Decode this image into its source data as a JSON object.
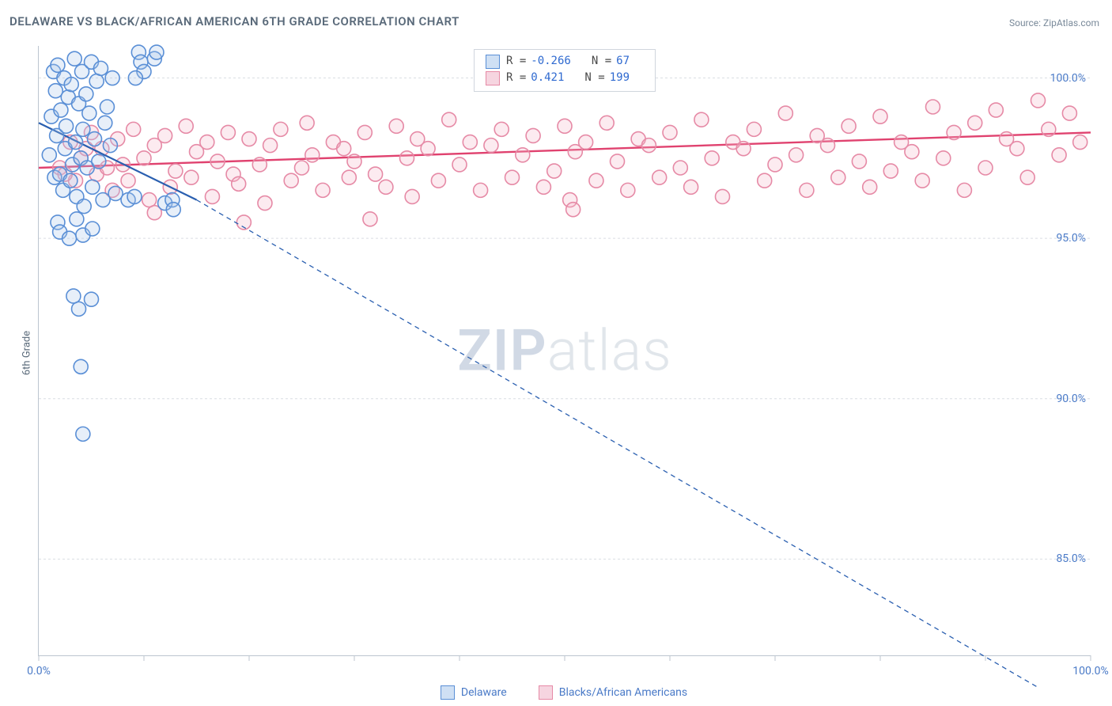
{
  "title": "DELAWARE VS BLACK/AFRICAN AMERICAN 6TH GRADE CORRELATION CHART",
  "source": "Source: ZipAtlas.com",
  "ylabel": "6th Grade",
  "watermark_left": "ZIP",
  "watermark_right": "atlas",
  "chart": {
    "type": "scatter",
    "xlim": [
      0,
      100
    ],
    "ylim": [
      82,
      101
    ],
    "y_ticks": [
      85.0,
      90.0,
      95.0,
      100.0
    ],
    "y_tick_labels": [
      "85.0%",
      "90.0%",
      "95.0%",
      "100.0%"
    ],
    "x_first_label": "0.0%",
    "x_last_label": "100.0%",
    "x_ticks": [
      0,
      10,
      20,
      30,
      40,
      50,
      60,
      70,
      80,
      90,
      100
    ],
    "grid_color": "#dadee3",
    "grid_dash": "3,3",
    "axis_color": "#bcc5cf",
    "background_color": "#ffffff",
    "marker_radius": 9,
    "marker_stroke_width": 1.6,
    "marker_fill_opacity": 0.28,
    "series": [
      {
        "name": "Delaware",
        "color_stroke": "#5a8fd6",
        "color_fill": "#a8c7ea",
        "data": [
          [
            1.0,
            97.6
          ],
          [
            1.2,
            98.8
          ],
          [
            1.4,
            100.2
          ],
          [
            1.5,
            96.9
          ],
          [
            1.6,
            99.6
          ],
          [
            1.7,
            98.2
          ],
          [
            1.8,
            100.4
          ],
          [
            2.0,
            97.0
          ],
          [
            2.1,
            99.0
          ],
          [
            2.3,
            96.5
          ],
          [
            2.4,
            100.0
          ],
          [
            2.5,
            97.8
          ],
          [
            2.6,
            98.5
          ],
          [
            2.8,
            99.4
          ],
          [
            3.0,
            96.8
          ],
          [
            3.1,
            99.8
          ],
          [
            3.2,
            97.3
          ],
          [
            3.4,
            100.6
          ],
          [
            3.5,
            98.0
          ],
          [
            3.6,
            96.3
          ],
          [
            3.8,
            99.2
          ],
          [
            4.0,
            97.5
          ],
          [
            4.1,
            100.2
          ],
          [
            4.2,
            98.4
          ],
          [
            4.3,
            96.0
          ],
          [
            4.5,
            99.5
          ],
          [
            4.6,
            97.2
          ],
          [
            4.8,
            98.9
          ],
          [
            5.0,
            100.5
          ],
          [
            5.1,
            96.6
          ],
          [
            5.3,
            98.1
          ],
          [
            5.5,
            99.9
          ],
          [
            5.7,
            97.4
          ],
          [
            5.9,
            100.3
          ],
          [
            6.1,
            96.2
          ],
          [
            6.3,
            98.6
          ],
          [
            6.5,
            99.1
          ],
          [
            6.8,
            97.9
          ],
          [
            7.0,
            100.0
          ],
          [
            7.3,
            96.4
          ],
          [
            1.8,
            95.5
          ],
          [
            2.0,
            95.2
          ],
          [
            2.9,
            95.0
          ],
          [
            3.6,
            95.6
          ],
          [
            4.2,
            95.1
          ],
          [
            5.1,
            95.3
          ],
          [
            9.5,
            100.8
          ],
          [
            9.7,
            100.5
          ],
          [
            10.0,
            100.2
          ],
          [
            9.2,
            100.0
          ],
          [
            3.8,
            92.8
          ],
          [
            4.0,
            91.0
          ],
          [
            3.3,
            93.2
          ],
          [
            5.0,
            93.1
          ],
          [
            4.2,
            88.9
          ],
          [
            8.5,
            96.2
          ],
          [
            9.1,
            96.3
          ],
          [
            12.0,
            96.1
          ],
          [
            12.7,
            96.2
          ],
          [
            12.8,
            95.9
          ],
          [
            11.0,
            100.6
          ],
          [
            11.2,
            100.8
          ]
        ],
        "trend": {
          "x1": 0,
          "y1": 98.6,
          "x2": 15,
          "y2": 96.2,
          "extrapolate_x2": 95,
          "extrapolate_y2": 81.0,
          "color": "#2a5fb0",
          "width": 2.2,
          "dash": "6,5"
        }
      },
      {
        "name": "Blacks/African Americans",
        "color_stroke": "#e68aa6",
        "color_fill": "#f4b8ca",
        "data": [
          [
            2,
            97.2
          ],
          [
            3,
            98.0
          ],
          [
            3.5,
            96.8
          ],
          [
            4,
            97.5
          ],
          [
            5,
            98.3
          ],
          [
            5.5,
            97.0
          ],
          [
            6,
            97.8
          ],
          [
            7,
            96.5
          ],
          [
            7.5,
            98.1
          ],
          [
            8,
            97.3
          ],
          [
            8.5,
            96.8
          ],
          [
            9,
            98.4
          ],
          [
            10,
            97.5
          ],
          [
            10.5,
            96.2
          ],
          [
            11,
            97.9
          ],
          [
            12,
            98.2
          ],
          [
            12.5,
            96.6
          ],
          [
            13,
            97.1
          ],
          [
            14,
            98.5
          ],
          [
            14.5,
            96.9
          ],
          [
            15,
            97.7
          ],
          [
            16,
            98.0
          ],
          [
            16.5,
            96.3
          ],
          [
            17,
            97.4
          ],
          [
            18,
            98.3
          ],
          [
            18.5,
            97.0
          ],
          [
            19,
            96.7
          ],
          [
            20,
            98.1
          ],
          [
            21,
            97.3
          ],
          [
            21.5,
            96.1
          ],
          [
            22,
            97.9
          ],
          [
            23,
            98.4
          ],
          [
            24,
            96.8
          ],
          [
            25,
            97.2
          ],
          [
            25.5,
            98.6
          ],
          [
            26,
            97.6
          ],
          [
            27,
            96.5
          ],
          [
            28,
            98.0
          ],
          [
            29,
            97.8
          ],
          [
            29.5,
            96.9
          ],
          [
            30,
            97.4
          ],
          [
            31,
            98.3
          ],
          [
            32,
            97.0
          ],
          [
            33,
            96.6
          ],
          [
            34,
            98.5
          ],
          [
            35,
            97.5
          ],
          [
            35.5,
            96.3
          ],
          [
            36,
            98.1
          ],
          [
            37,
            97.8
          ],
          [
            38,
            96.8
          ],
          [
            39,
            98.7
          ],
          [
            40,
            97.3
          ],
          [
            41,
            98.0
          ],
          [
            42,
            96.5
          ],
          [
            43,
            97.9
          ],
          [
            44,
            98.4
          ],
          [
            45,
            96.9
          ],
          [
            46,
            97.6
          ],
          [
            47,
            98.2
          ],
          [
            48,
            96.6
          ],
          [
            49,
            97.1
          ],
          [
            50,
            98.5
          ],
          [
            50.5,
            96.2
          ],
          [
            51,
            97.7
          ],
          [
            52,
            98.0
          ],
          [
            53,
            96.8
          ],
          [
            54,
            98.6
          ],
          [
            55,
            97.4
          ],
          [
            56,
            96.5
          ],
          [
            57,
            98.1
          ],
          [
            58,
            97.9
          ],
          [
            59,
            96.9
          ],
          [
            60,
            98.3
          ],
          [
            61,
            97.2
          ],
          [
            62,
            96.6
          ],
          [
            63,
            98.7
          ],
          [
            64,
            97.5
          ],
          [
            65,
            96.3
          ],
          [
            66,
            98.0
          ],
          [
            67,
            97.8
          ],
          [
            68,
            98.4
          ],
          [
            69,
            96.8
          ],
          [
            70,
            97.3
          ],
          [
            71,
            98.9
          ],
          [
            72,
            97.6
          ],
          [
            73,
            96.5
          ],
          [
            74,
            98.2
          ],
          [
            75,
            97.9
          ],
          [
            76,
            96.9
          ],
          [
            77,
            98.5
          ],
          [
            78,
            97.4
          ],
          [
            79,
            96.6
          ],
          [
            80,
            98.8
          ],
          [
            81,
            97.1
          ],
          [
            82,
            98.0
          ],
          [
            83,
            97.7
          ],
          [
            84,
            96.8
          ],
          [
            85,
            99.1
          ],
          [
            86,
            97.5
          ],
          [
            87,
            98.3
          ],
          [
            88,
            96.5
          ],
          [
            89,
            98.6
          ],
          [
            90,
            97.2
          ],
          [
            91,
            99.0
          ],
          [
            92,
            98.1
          ],
          [
            93,
            97.8
          ],
          [
            94,
            96.9
          ],
          [
            95,
            99.3
          ],
          [
            96,
            98.4
          ],
          [
            97,
            97.6
          ],
          [
            98,
            98.9
          ],
          [
            99,
            98.0
          ],
          [
            11,
            95.8
          ],
          [
            19.5,
            95.5
          ],
          [
            31.5,
            95.6
          ],
          [
            50.8,
            95.9
          ],
          [
            2.5,
            97.0
          ],
          [
            4.5,
            97.8
          ],
          [
            6.5,
            97.2
          ]
        ],
        "trend": {
          "x1": 0,
          "y1": 97.2,
          "x2": 100,
          "y2": 98.3,
          "color": "#e0426f",
          "width": 2.4
        }
      }
    ]
  },
  "stats_box": {
    "rows": [
      {
        "swatch_fill": "#cfe0f4",
        "swatch_border": "#5a8fd6",
        "R": "-0.266",
        "N": "67"
      },
      {
        "swatch_fill": "#f6d5e0",
        "swatch_border": "#e68aa6",
        "R": "0.421",
        "N": "199"
      }
    ]
  },
  "legend_bottom": [
    {
      "swatch_fill": "#cfe0f4",
      "swatch_border": "#5a8fd6",
      "label": "Delaware"
    },
    {
      "swatch_fill": "#f6d5e0",
      "swatch_border": "#e68aa6",
      "label": "Blacks/African Americans"
    }
  ]
}
